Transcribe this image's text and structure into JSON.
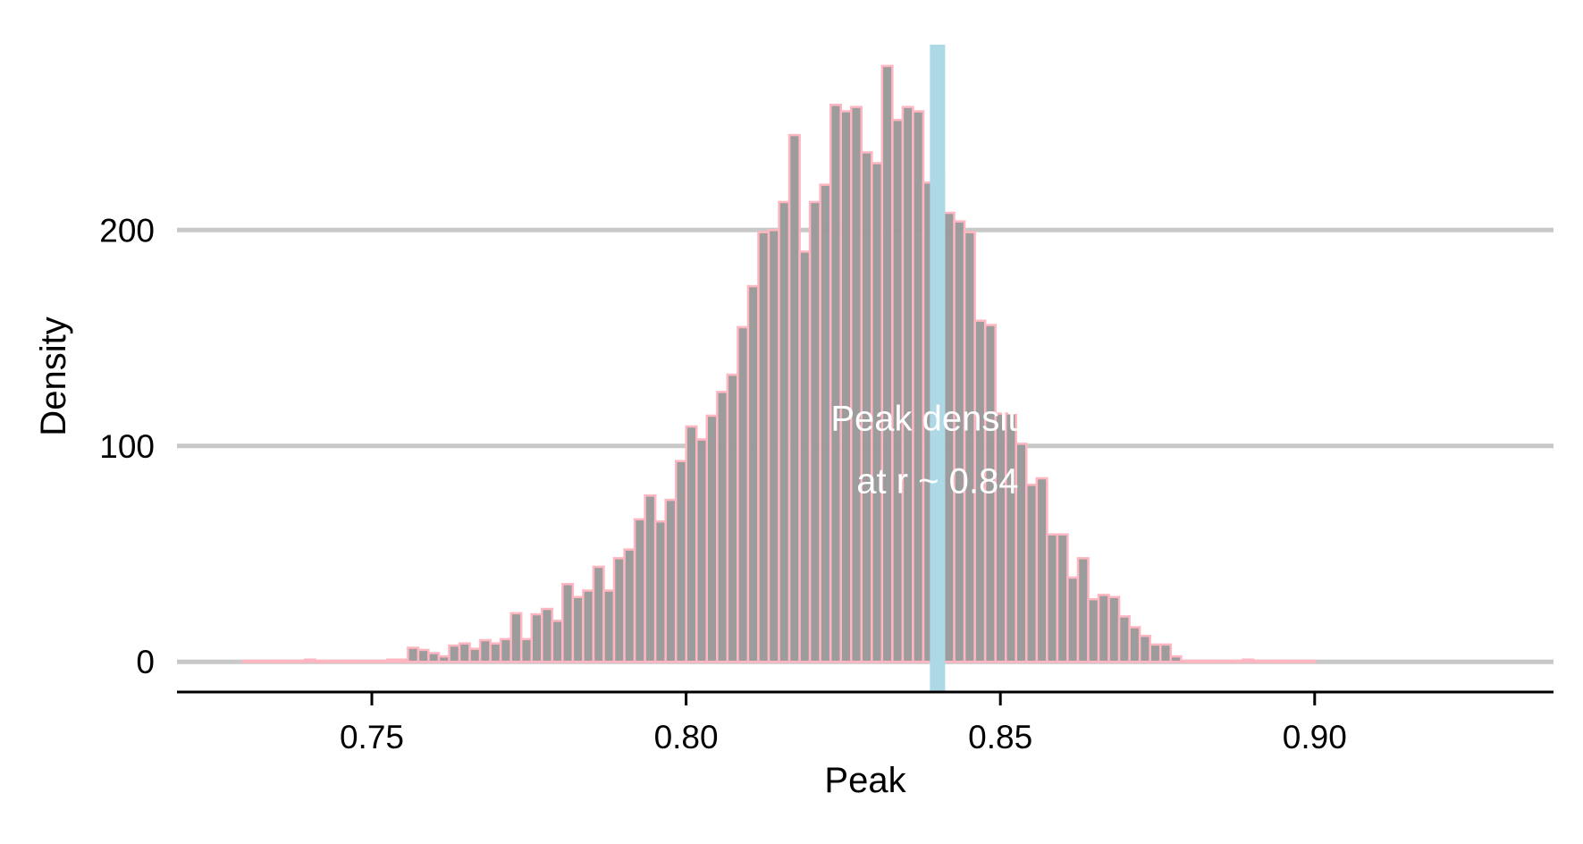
{
  "chart_data": {
    "type": "bar",
    "xlabel": "Peak",
    "ylabel": "Density",
    "xlim": [
      0.719,
      0.938
    ],
    "ylim": [
      -14,
      290
    ],
    "x_ticks": [
      0.75,
      0.8,
      0.85,
      0.9
    ],
    "x_tick_labels": [
      "0.75",
      "0.80",
      "0.85",
      "0.90"
    ],
    "y_ticks": [
      0,
      100,
      200
    ],
    "y_tick_labels": [
      "0",
      "100",
      "200"
    ],
    "grid": "horizontal",
    "bin_start": 0.7295,
    "bin_width": 0.00164,
    "values": [
      0.5,
      0.5,
      0.5,
      0.5,
      0.5,
      0.5,
      1,
      0.5,
      0.5,
      0.5,
      0.5,
      0.5,
      0.5,
      0.5,
      1,
      1,
      6.5,
      5.5,
      4,
      2.5,
      7.5,
      8.5,
      6,
      10,
      8.5,
      10.5,
      22.5,
      10.5,
      22,
      24.5,
      19,
      36,
      30,
      33,
      44,
      33,
      48,
      52,
      66,
      77,
      65,
      75,
      93,
      109,
      103,
      114,
      125,
      133,
      155,
      174,
      199,
      200,
      213,
      244,
      190,
      213,
      221,
      258,
      255,
      257,
      236,
      231,
      276,
      251,
      257,
      255,
      222,
      225,
      208,
      204,
      199,
      158,
      156,
      115,
      115,
      101,
      82,
      85,
      59,
      59,
      39,
      48,
      29,
      31,
      30,
      21,
      16,
      12,
      8,
      8,
      2.5,
      0.5,
      0.5,
      0.5,
      0.5,
      0.5,
      0.5,
      1,
      0.5,
      0.5,
      0.5,
      0.5,
      0.5,
      0.5
    ],
    "bar_fill": "#999999",
    "bar_outline": "#ffb6c1",
    "reference_line": {
      "x": 0.84,
      "color": "#add8e6"
    },
    "annotation": {
      "line1": "Peak density",
      "line2": "at r ~ 0.84",
      "x": 0.84,
      "y1": 113,
      "y2": 84
    }
  }
}
